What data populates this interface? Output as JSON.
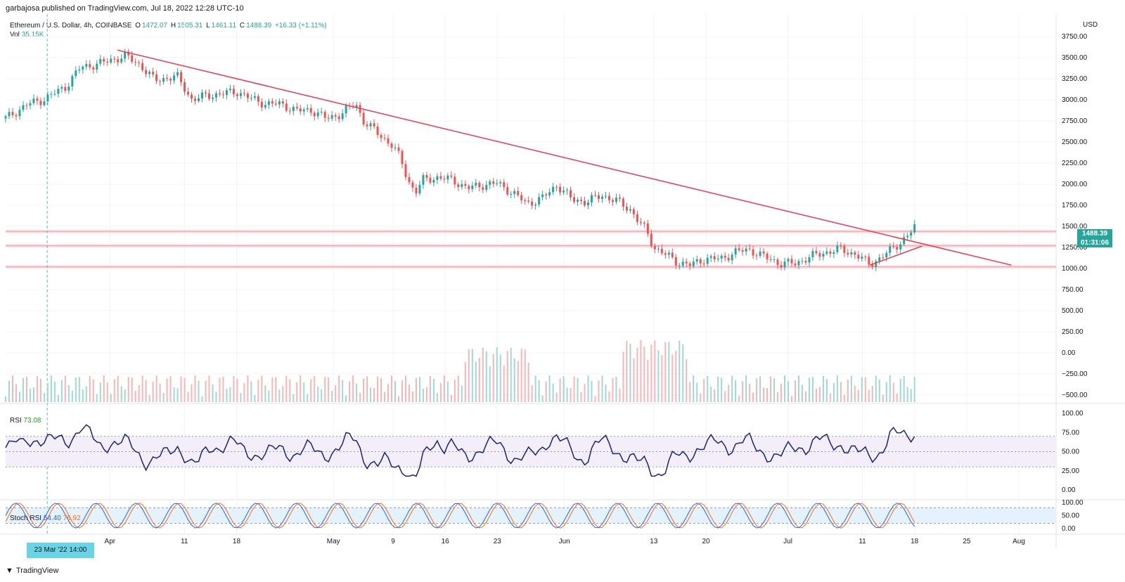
{
  "header": {
    "published": "garbajosa published on TradingView.com, Jul 18, 2022 12:28 UTC-10"
  },
  "legend": {
    "symbol": "Ethereum / U.S. Dollar, 4h, COINBASE",
    "o_label": "O",
    "o": "1472.07",
    "h_label": "H",
    "h": "1505.31",
    "l_label": "L",
    "l": "1461.11",
    "c_label": "C",
    "c": "1488.39",
    "change": "+16.33 (+1.11%)",
    "vol_label": "Vol",
    "vol": "35.15K"
  },
  "rsi": {
    "label": "RSI",
    "value": "73.08"
  },
  "stoch": {
    "label": "Stoch RSI",
    "k": "54.40",
    "d": "76.92"
  },
  "price_badge": {
    "price": "1488.39",
    "countdown": "01:31:06"
  },
  "time_badge": "23 Mar '22  14:00",
  "currency": "USD",
  "footer": {
    "brand": "TradingView"
  },
  "colors": {
    "up": "#26a69a",
    "down": "#ef5350",
    "trendline": "#f23645",
    "rsi_line": "#1a237e",
    "stoch_k": "#2962ff",
    "stoch_d": "#ff6d00"
  },
  "chart_data": {
    "type": "line",
    "title": "Ethereum / U.S. Dollar, 4h, COINBASE",
    "x_ticks": [
      "Apr",
      "11",
      "18",
      "May",
      "9",
      "16",
      "23",
      "Jun",
      "13",
      "20",
      "Jul",
      "11",
      "18",
      "25",
      "Aug"
    ],
    "y_ticks": [
      "3750.00",
      "3500.00",
      "3250.00",
      "3000.00",
      "2750.00",
      "2500.00",
      "2250.00",
      "2000.00",
      "1750.00",
      "1500.00",
      "1250.00",
      "1000.00",
      "750.00",
      "500.00",
      "250.00",
      "0.00",
      "−250.00",
      "−500.00"
    ],
    "rsi_ticks": [
      "100.00",
      "75.00",
      "50.00",
      "25.00",
      "0.00"
    ],
    "stoch_ticks": [
      "100.00",
      "50.00",
      "0.00"
    ],
    "price_series": {
      "name": "ETHUSD close",
      "x": [
        "Mar 18",
        "Mar 21",
        "Mar 23",
        "Mar 26",
        "Mar 28",
        "Mar 31",
        "Apr 3",
        "Apr 5",
        "Apr 7",
        "Apr 10",
        "Apr 12",
        "Apr 14",
        "Apr 16",
        "Apr 18",
        "Apr 20",
        "Apr 22",
        "Apr 24",
        "Apr 26",
        "Apr 28",
        "Apr 30",
        "May 2",
        "May 4",
        "May 5",
        "May 7",
        "May 9",
        "May 10",
        "May 11",
        "May 12",
        "May 13",
        "May 15",
        "May 17",
        "May 19",
        "May 21",
        "May 23",
        "May 25",
        "May 27",
        "May 29",
        "May 31",
        "Jun 2",
        "Jun 4",
        "Jun 6",
        "Jun 8",
        "Jun 10",
        "Jun 11",
        "Jun 12",
        "Jun 13",
        "Jun 14",
        "Jun 16",
        "Jun 18",
        "Jun 20",
        "Jun 22",
        "Jun 24",
        "Jun 26",
        "Jun 28",
        "Jun 30",
        "Jul 2",
        "Jul 4",
        "Jul 6",
        "Jul 8",
        "Jul 10",
        "Jul 12",
        "Jul 13",
        "Jul 15",
        "Jul 17",
        "Jul 18"
      ],
      "y": [
        2780,
        2950,
        3000,
        3150,
        3380,
        3440,
        3520,
        3420,
        3230,
        3280,
        3000,
        3050,
        3070,
        3100,
        3010,
        2950,
        2950,
        2870,
        2880,
        2780,
        2830,
        2960,
        2750,
        2600,
        2450,
        2300,
        2050,
        1900,
        2050,
        2080,
        2050,
        1950,
        1990,
        2010,
        1900,
        1770,
        1830,
        1990,
        1820,
        1790,
        1870,
        1800,
        1690,
        1550,
        1450,
        1250,
        1200,
        1080,
        1040,
        1120,
        1110,
        1200,
        1220,
        1130,
        1060,
        1060,
        1140,
        1190,
        1230,
        1170,
        1050,
        1100,
        1230,
        1380,
        1488
      ]
    },
    "trendlines": [
      {
        "name": "descending",
        "from": [
          "Apr 2",
          3590
        ],
        "to": [
          "Jul 31",
          1040
        ]
      },
      {
        "name": "rising",
        "from": [
          "Jul 12",
          1040
        ],
        "to": [
          "Jul 19",
          1265
        ]
      }
    ],
    "horizontal_levels": [
      1440,
      1270,
      1020
    ],
    "rsi_bands": [
      70,
      50,
      30
    ],
    "stoch_bands": [
      80,
      20
    ]
  }
}
